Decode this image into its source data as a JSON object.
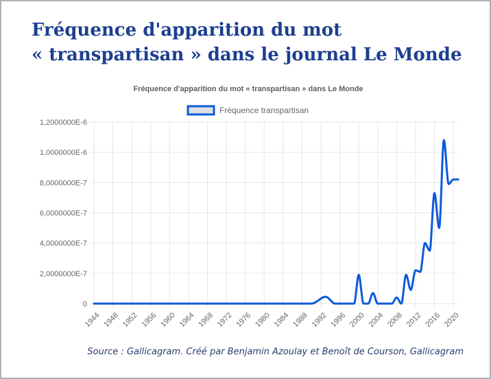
{
  "page": {
    "title_line1": "Fréquence d'apparition du mot",
    "title_line2": "« transpartisan » dans le journal Le Monde",
    "source": "Source : Gallicagram. Créé par Benjamin Azoulay et Benoît de Courson, Gallicagram"
  },
  "chart_data": {
    "type": "line",
    "title": "Fréquence d'apparition du mot « transpartisan » dans Le Monde",
    "legend": {
      "position": "top",
      "entries": [
        "Fréquence transpartisan"
      ]
    },
    "series_color": "#0b5ad8",
    "legend_fill": "#e0e0e0",
    "grid": true,
    "xlim": [
      1944,
      2021
    ],
    "ylim": [
      0,
      1.2e-06
    ],
    "x_ticks": [
      "1944",
      "1948",
      "1952",
      "1956",
      "1960",
      "1964",
      "1968",
      "1972",
      "1976",
      "1980",
      "1984",
      "1988",
      "1992",
      "1996",
      "2000",
      "2004",
      "2008",
      "2012",
      "2016",
      "2020"
    ],
    "y_ticks": [
      {
        "value": 0,
        "label": "0"
      },
      {
        "value": 2e-07,
        "label": "2,0000000E-7"
      },
      {
        "value": 4e-07,
        "label": "4,0000000E-7"
      },
      {
        "value": 6e-07,
        "label": "6,0000000E-7"
      },
      {
        "value": 8e-07,
        "label": "8,0000000E-7"
      },
      {
        "value": 1e-06,
        "label": "1,0000000E-6"
      },
      {
        "value": 1.2e-06,
        "label": "1,2000000E-6"
      }
    ],
    "series": [
      {
        "name": "Fréquence transpartisan",
        "x": [
          1944,
          1990,
          1993,
          1995,
          1999,
          2000,
          2001,
          2002,
          2003,
          2004,
          2007,
          2008,
          2009,
          2010,
          2011,
          2012,
          2013,
          2014,
          2015,
          2016,
          2017,
          2018,
          2019,
          2020,
          2021
        ],
        "y": [
          0,
          0,
          4.5e-08,
          0,
          0,
          1.9e-07,
          0,
          0,
          7e-08,
          0,
          0,
          4e-08,
          0,
          1.9e-07,
          9e-08,
          2.2e-07,
          2.1e-07,
          4e-07,
          3.5e-07,
          7.3e-07,
          5e-07,
          1.08e-06,
          7.9e-07,
          8.2e-07,
          8.2e-07
        ]
      }
    ]
  }
}
